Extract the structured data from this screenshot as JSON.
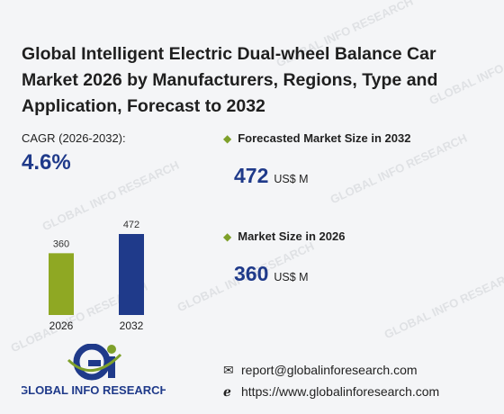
{
  "title": "Global Intelligent Electric Dual-wheel Balance Car Market 2026 by Manufacturers, Regions, Type and Application, Forecast to 2032",
  "watermark": "GLOBAL INFO RESEARCH",
  "cagr": {
    "label": "CAGR (2026-2032):",
    "value": "4.6%"
  },
  "forecast": {
    "label": "Forecasted Market Size in 2032",
    "value": "472",
    "unit": "US$ M"
  },
  "current": {
    "label": "Market Size in 2026",
    "value": "360",
    "unit": "US$ M"
  },
  "contact": {
    "email": "report@globalinforesearch.com",
    "website": "https://www.globalinforesearch.com"
  },
  "logo": {
    "text": "GLOBAL INFO RESEARCH",
    "mark": "Gi"
  },
  "colors": {
    "bar_2026": "#8fa823",
    "bar_2032": "#1f3a8a",
    "accent": "#1f3a8a",
    "logo_green": "#7ea02a"
  },
  "chart_data": {
    "type": "bar",
    "categories": [
      "2026",
      "2032"
    ],
    "values": [
      360,
      472
    ],
    "ylim": [
      0,
      472
    ]
  }
}
